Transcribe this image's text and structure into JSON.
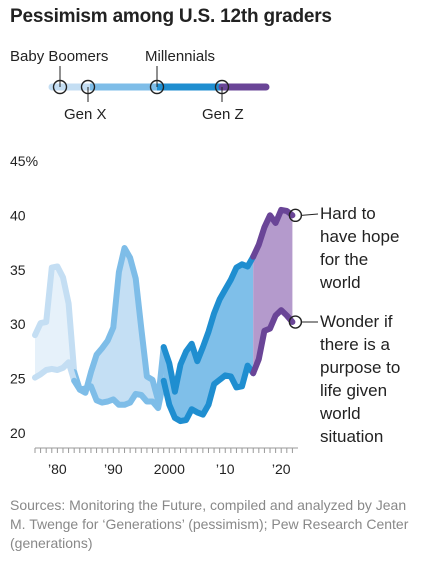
{
  "chart_data": {
    "type": "area",
    "title": "Pessimism among U.S. 12th graders",
    "generations_legend": {
      "labels_top": [
        "Baby Boomers",
        "Millennials"
      ],
      "labels_bottom": [
        "Gen X",
        "Gen Z"
      ],
      "segments": [
        {
          "name": "Baby Boomers",
          "color": "#c4def3"
        },
        {
          "name": "Gen X",
          "color": "#7ebde8"
        },
        {
          "name": "Millennials",
          "color": "#1f8ed0"
        },
        {
          "name": "Gen Z",
          "color": "#6a4597"
        }
      ]
    },
    "y_unit_label": "45%",
    "y_ticks": [
      20,
      25,
      30,
      35,
      40
    ],
    "y_min": 19,
    "y_max": 46,
    "x_min": 1976,
    "x_max": 2023,
    "x_tick_labels": [
      {
        "year": 1980,
        "label": "’80"
      },
      {
        "year": 1990,
        "label": "’90"
      },
      {
        "year": 2000,
        "label": "2000"
      },
      {
        "year": 2010,
        "label": "’10"
      },
      {
        "year": 2020,
        "label": "’20"
      }
    ],
    "series": [
      {
        "name": "Hard to have hope for the world",
        "label_lines": [
          "Hard to",
          "have hope",
          "for the",
          "world"
        ],
        "x": [
          1976,
          1977,
          1978,
          1979,
          1980,
          1981,
          1982,
          1983,
          1984,
          1985,
          1986,
          1987,
          1988,
          1989,
          1990,
          1991,
          1992,
          1993,
          1994,
          1995,
          1996,
          1997,
          1998,
          1999,
          2000,
          2001,
          2002,
          2003,
          2004,
          2005,
          2006,
          2007,
          2008,
          2009,
          2010,
          2011,
          2012,
          2013,
          2014,
          2015,
          2016,
          2017,
          2018,
          2019,
          2020,
          2021,
          2022
        ],
        "values": [
          29.0,
          30.1,
          30.2,
          35.2,
          35.3,
          34.3,
          31.9,
          25.6,
          24.0,
          23.7,
          25.6,
          27.2,
          27.8,
          28.5,
          29.7,
          34.8,
          37.0,
          36.1,
          34.2,
          29.6,
          25.2,
          24.9,
          23.0,
          27.9,
          26.4,
          23.8,
          26.3,
          27.5,
          28.2,
          26.6,
          27.9,
          29.3,
          31.0,
          32.3,
          33.2,
          34.1,
          35.2,
          35.5,
          35.3,
          36.2,
          37.3,
          38.9,
          40.0,
          39.3,
          40.5,
          40.4,
          40.0
        ]
      },
      {
        "name": "Wonder if there is a purpose to life given world situation",
        "label_lines": [
          "Wonder if",
          "there is a",
          "purpose to",
          "life given",
          "world",
          "situation"
        ],
        "x": [
          1976,
          1977,
          1978,
          1979,
          1980,
          1981,
          1982,
          1983,
          1984,
          1985,
          1986,
          1987,
          1988,
          1989,
          1990,
          1991,
          1992,
          1993,
          1994,
          1995,
          1996,
          1997,
          1998,
          1999,
          2000,
          2001,
          2002,
          2003,
          2004,
          2005,
          2006,
          2007,
          2008,
          2009,
          2010,
          2011,
          2012,
          2013,
          2014,
          2015,
          2016,
          2017,
          2018,
          2019,
          2020,
          2021,
          2022
        ],
        "values": [
          25.1,
          25.4,
          25.8,
          25.9,
          25.8,
          26.0,
          26.5,
          24.8,
          24.0,
          24.1,
          24.3,
          23.0,
          22.8,
          22.9,
          23.1,
          22.6,
          22.6,
          22.8,
          23.6,
          23.5,
          22.9,
          22.9,
          22.3,
          24.8,
          22.6,
          21.4,
          21.1,
          21.2,
          22.2,
          21.9,
          21.7,
          22.6,
          24.5,
          24.9,
          25.3,
          25.2,
          24.2,
          24.3,
          26.2,
          25.5,
          26.8,
          29.4,
          29.6,
          30.8,
          31.3,
          30.8,
          30.2
        ]
      }
    ],
    "era_breaks": [
      {
        "from": 1976,
        "to": 1983,
        "generation": "Baby Boomers"
      },
      {
        "from": 1983,
        "to": 1999,
        "generation": "Gen X"
      },
      {
        "from": 1999,
        "to": 2015,
        "generation": "Millennials"
      },
      {
        "from": 2015,
        "to": 2022,
        "generation": "Gen Z"
      }
    ]
  },
  "sources": "Sources: Monitoring the Future, compiled and analyzed by Jean M. Twenge for ‘Generations’ (pessimism); Pew Research Center (generations)"
}
